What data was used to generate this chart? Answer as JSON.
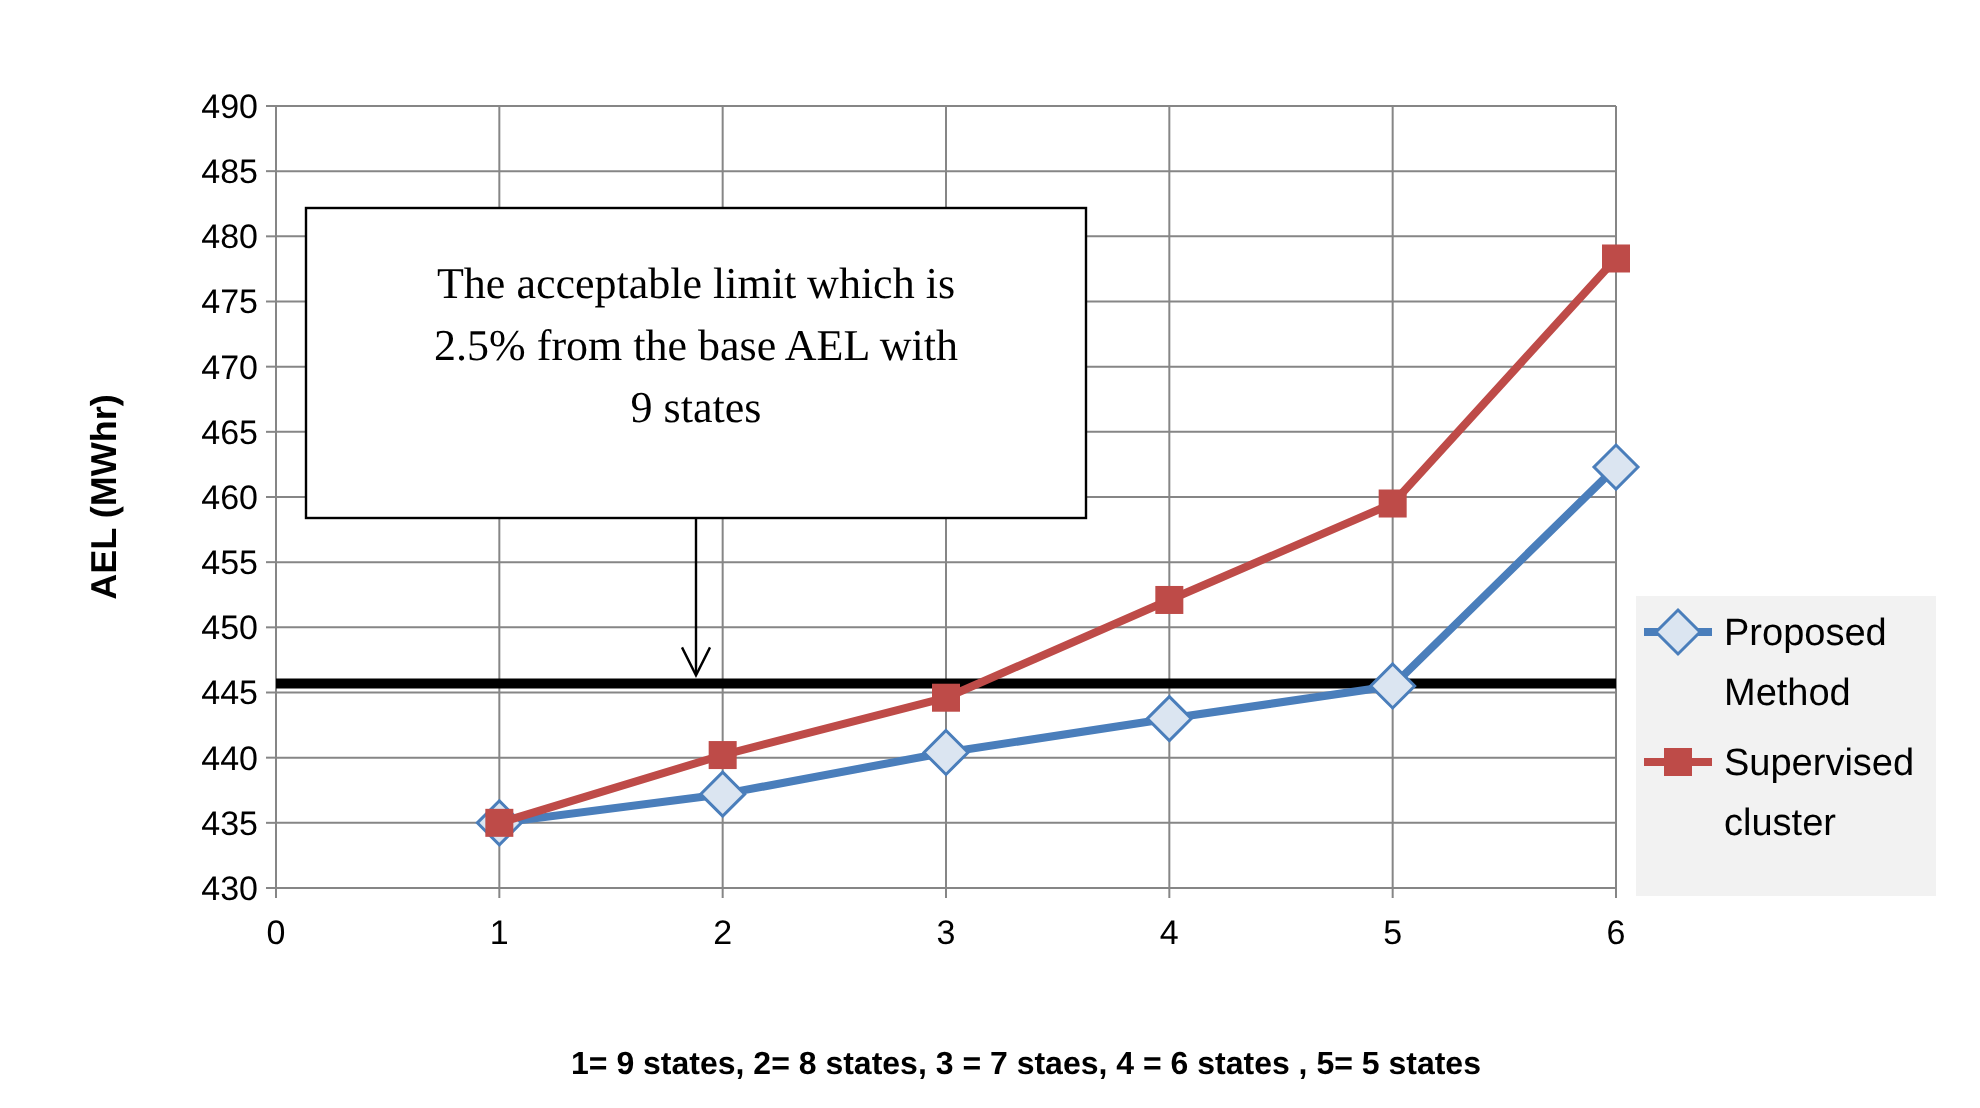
{
  "chart_data": {
    "type": "line",
    "xlabel": "1= 9 states, 2= 8 states, 3 = 7 staes, 4 = 6 states , 5= 5 states",
    "ylabel": "AEL (MWhr)",
    "x": [
      1,
      2,
      3,
      4,
      5,
      6
    ],
    "series": [
      {
        "name": "Proposed Method",
        "color": "#4a7ebb",
        "marker": "diamond",
        "values": [
          435,
          437.2,
          440.4,
          443,
          445.5,
          462.3
        ]
      },
      {
        "name": "Supervised cluster",
        "color": "#be4b48",
        "marker": "square",
        "values": [
          435,
          440.2,
          444.6,
          452.1,
          459.5,
          478.3
        ]
      }
    ],
    "xlim": [
      0,
      6
    ],
    "xticks": [
      0,
      1,
      2,
      3,
      4,
      5,
      6
    ],
    "ylim": [
      430,
      490
    ],
    "yticks": [
      430,
      435,
      440,
      445,
      450,
      455,
      460,
      465,
      470,
      475,
      480,
      485,
      490
    ],
    "grid": true,
    "legend": "right",
    "line_style": "solid",
    "ref_lines": [
      {
        "axis": "y",
        "value": 445.7,
        "color": "#000000"
      }
    ],
    "annotations": [
      "The acceptable limit which is\n2.5% from the  base AEL with\n9 states"
    ]
  }
}
